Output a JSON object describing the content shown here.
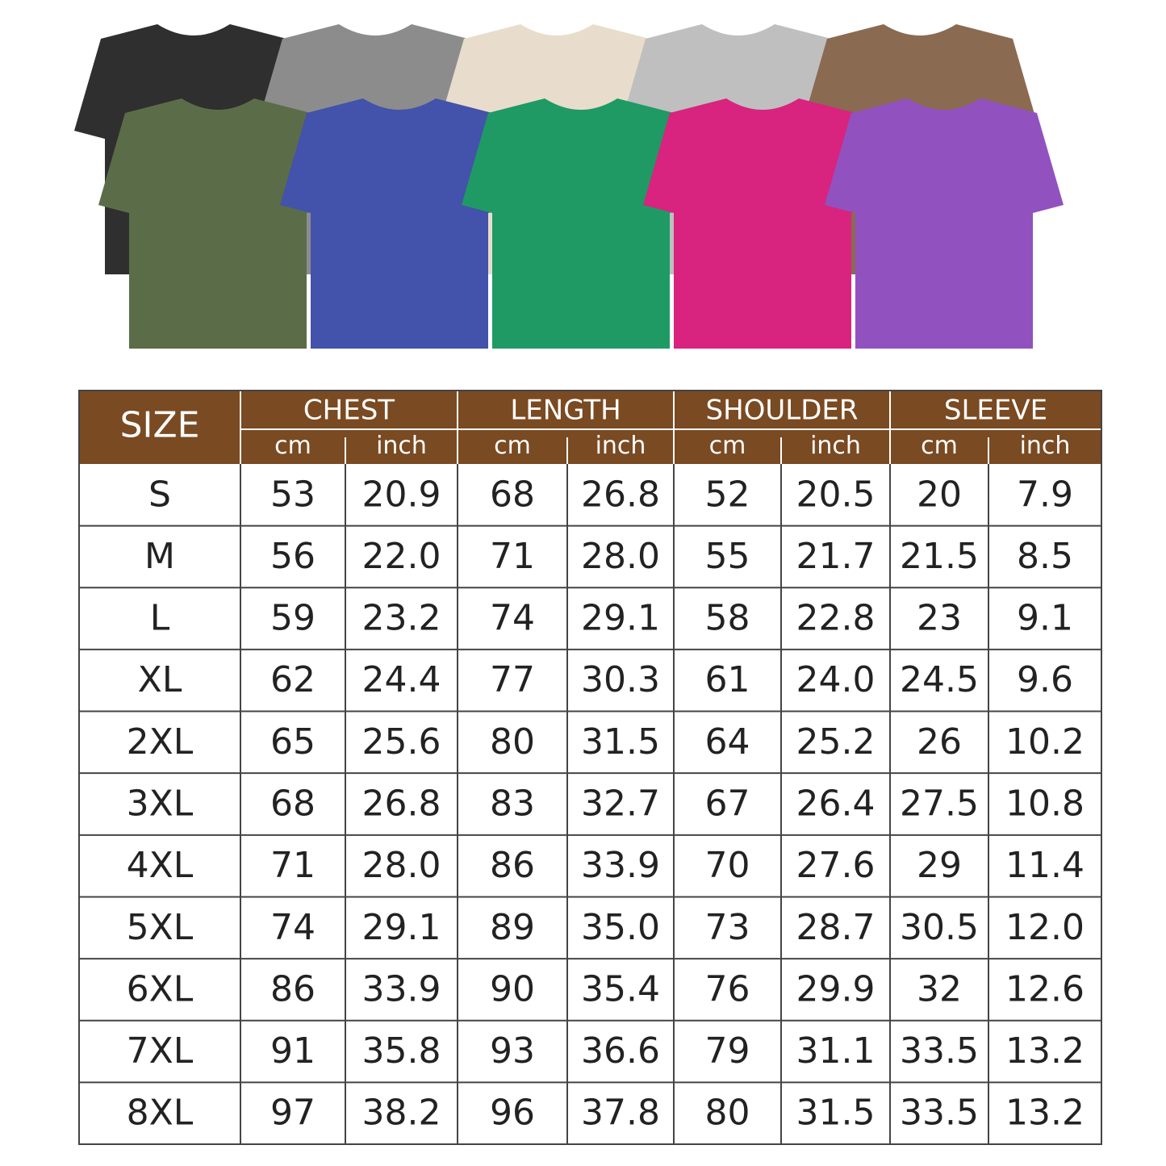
{
  "table": {
    "size_header": "SIZE",
    "groups": [
      "CHEST",
      "LENGTH",
      "SHOULDER",
      "SLEEVE"
    ],
    "units": [
      "cm",
      "inch"
    ],
    "rows": [
      [
        "S",
        "53",
        "20.9",
        "68",
        "26.8",
        "52",
        "20.5",
        "20",
        "7.9"
      ],
      [
        "M",
        "56",
        "22.0",
        "71",
        "28.0",
        "55",
        "21.7",
        "21.5",
        "8.5"
      ],
      [
        "L",
        "59",
        "23.2",
        "74",
        "29.1",
        "58",
        "22.8",
        "23",
        "9.1"
      ],
      [
        "XL",
        "62",
        "24.4",
        "77",
        "30.3",
        "61",
        "24.0",
        "24.5",
        "9.6"
      ],
      [
        "2XL",
        "65",
        "25.6",
        "80",
        "31.5",
        "64",
        "25.2",
        "26",
        "10.2"
      ],
      [
        "3XL",
        "68",
        "26.8",
        "83",
        "32.7",
        "67",
        "26.4",
        "27.5",
        "10.8"
      ],
      [
        "4XL",
        "71",
        "28.0",
        "86",
        "33.9",
        "70",
        "27.6",
        "29",
        "11.4"
      ],
      [
        "5XL",
        "74",
        "29.1",
        "89",
        "35.0",
        "73",
        "28.7",
        "30.5",
        "12.0"
      ],
      [
        "6XL",
        "86",
        "33.9",
        "90",
        "35.4",
        "76",
        "29.9",
        "32",
        "12.6"
      ],
      [
        "7XL",
        "91",
        "35.8",
        "93",
        "36.6",
        "79",
        "31.1",
        "33.5",
        "13.2"
      ],
      [
        "8XL",
        "97",
        "38.2",
        "96",
        "37.8",
        "80",
        "31.5",
        "33.5",
        "13.2"
      ]
    ]
  }
}
